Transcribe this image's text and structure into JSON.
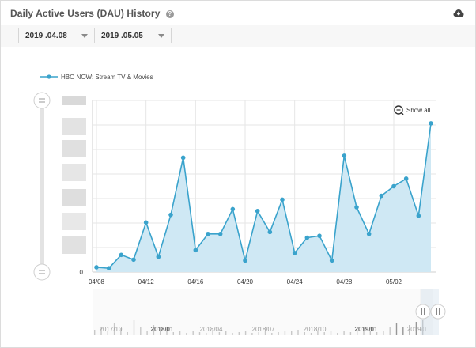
{
  "header": {
    "title": "Daily Active Users (DAU) History",
    "help_icon": "question-circle-icon",
    "download_icon": "cloud-download-icon"
  },
  "filters": {
    "start_date": "2019 .04.08",
    "end_date": "2019 .05.05"
  },
  "zoom": {
    "label": "Show all",
    "icon": "zoom-out-icon"
  },
  "colors": {
    "series": "#3aa3cc",
    "area": "#cfe8f4",
    "grid": "#e6e6e6"
  },
  "chart_data": {
    "type": "area",
    "title": "",
    "series": [
      {
        "name": "HBO NOW: Stream TV & Movies",
        "dates": [
          "04/08",
          "04/09",
          "04/10",
          "04/11",
          "04/12",
          "04/13",
          "04/14",
          "04/15",
          "04/16",
          "04/17",
          "04/18",
          "04/19",
          "04/20",
          "04/21",
          "04/22",
          "04/23",
          "04/24",
          "04/25",
          "04/26",
          "04/27",
          "04/28",
          "04/29",
          "04/30",
          "05/01",
          "05/02",
          "05/03",
          "05/04",
          "05/05"
        ],
        "values": [
          25,
          20,
          90,
          65,
          260,
          80,
          300,
          600,
          115,
          200,
          200,
          330,
          60,
          320,
          210,
          380,
          100,
          180,
          190,
          60,
          610,
          340,
          200,
          400,
          450,
          490,
          295,
          780
        ]
      }
    ],
    "x_tick_labels": [
      "04/08",
      "04/12",
      "04/16",
      "04/20",
      "04/24",
      "04/28",
      "05/02"
    ],
    "y_tick_labels": [
      "0"
    ],
    "y_max": 900,
    "grid": true,
    "legend_position": "top-left"
  },
  "navigator": {
    "labels": [
      "2017/10",
      "2018/01",
      "2018/04",
      "2018/07",
      "2018/10",
      "2019/01",
      "2019/0"
    ],
    "bold_labels": [
      "2018/01",
      "2019/01"
    ]
  },
  "slider_handle_icon": "grip-icon"
}
